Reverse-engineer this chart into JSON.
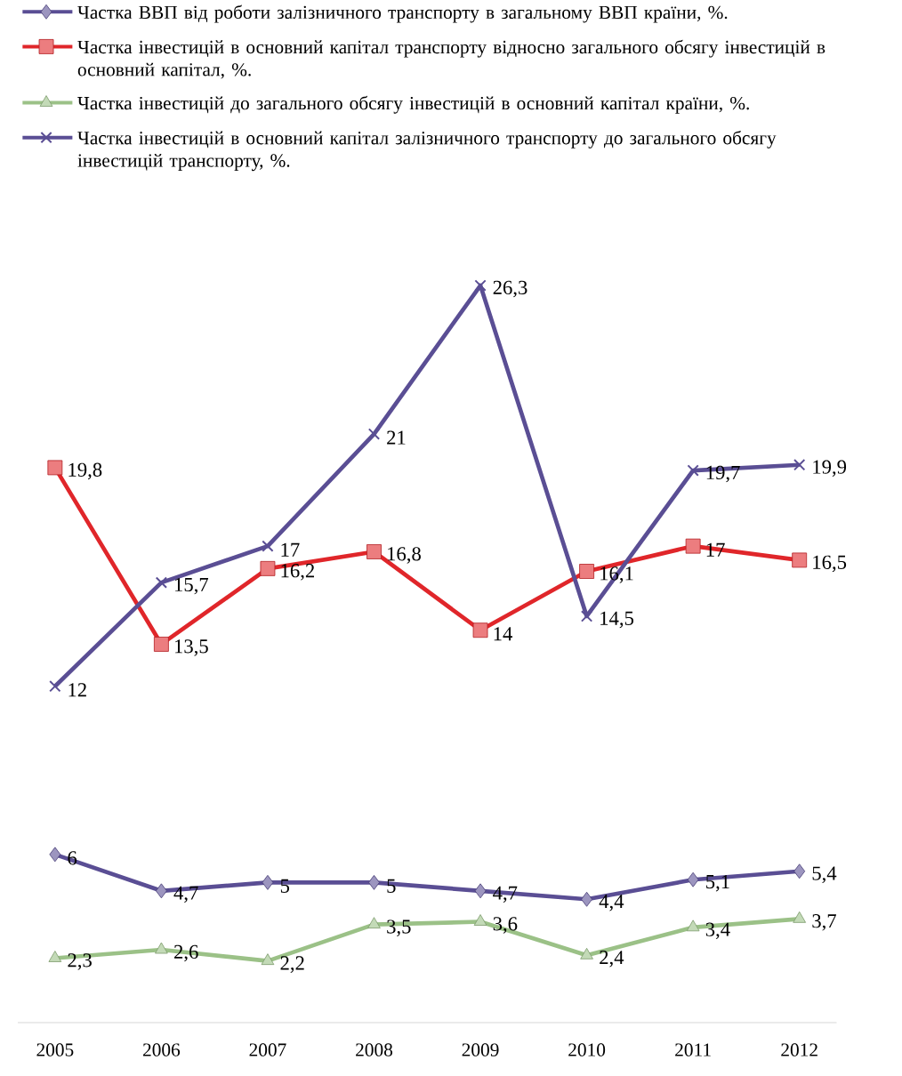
{
  "chart_data": {
    "type": "line",
    "categories": [
      "2005",
      "2006",
      "2007",
      "2008",
      "2009",
      "2010",
      "2011",
      "2012"
    ],
    "legend": "top",
    "series": [
      {
        "name": "Частка ВВП від роботи залізничного транспорту в загальному ВВП країни, %.",
        "color": "#5a4e94",
        "marker": "diamond",
        "values": [
          6,
          4.7,
          5,
          5,
          4.7,
          4.4,
          5.1,
          5.4
        ],
        "value_labels": [
          "6",
          "4,7",
          "5",
          "5",
          "4,7",
          "4,4",
          "5,1",
          "5,4"
        ]
      },
      {
        "name": "Частка інвестицій в основний капітал транспорту відносно загального обсягу інвестицій в основний капітал, %.",
        "color": "#e0262a",
        "marker": "square",
        "values": [
          19.8,
          13.5,
          16.2,
          16.8,
          14,
          16.1,
          17,
          16.5
        ],
        "value_labels": [
          "19,8",
          "13,5",
          "16,2",
          "16,8",
          "14",
          "16,1",
          "17",
          "16,5"
        ]
      },
      {
        "name": "Частка інвестицій до загального обсягу інвестицій в основний капітал країни, %.",
        "color": "#9bc187",
        "marker": "triangle",
        "values": [
          2.3,
          2.6,
          2.2,
          3.5,
          3.6,
          2.4,
          3.4,
          3.7
        ],
        "value_labels": [
          "2,3",
          "2,6",
          "2,2",
          "3,5",
          "3,6",
          "2,4",
          "3,4",
          "3,7"
        ]
      },
      {
        "name": "Частка інвестицій в основний капітал залізничного транспорту до загального обсягу інвестицій транспорту, %.",
        "color": "#5a4e94",
        "marker": "cross",
        "values": [
          12,
          15.7,
          17,
          21,
          26.3,
          14.5,
          19.7,
          19.9
        ],
        "value_labels": [
          "12",
          "15,7",
          "17",
          "21",
          "26,3",
          "14,5",
          "19,7",
          "19,9"
        ]
      }
    ]
  }
}
